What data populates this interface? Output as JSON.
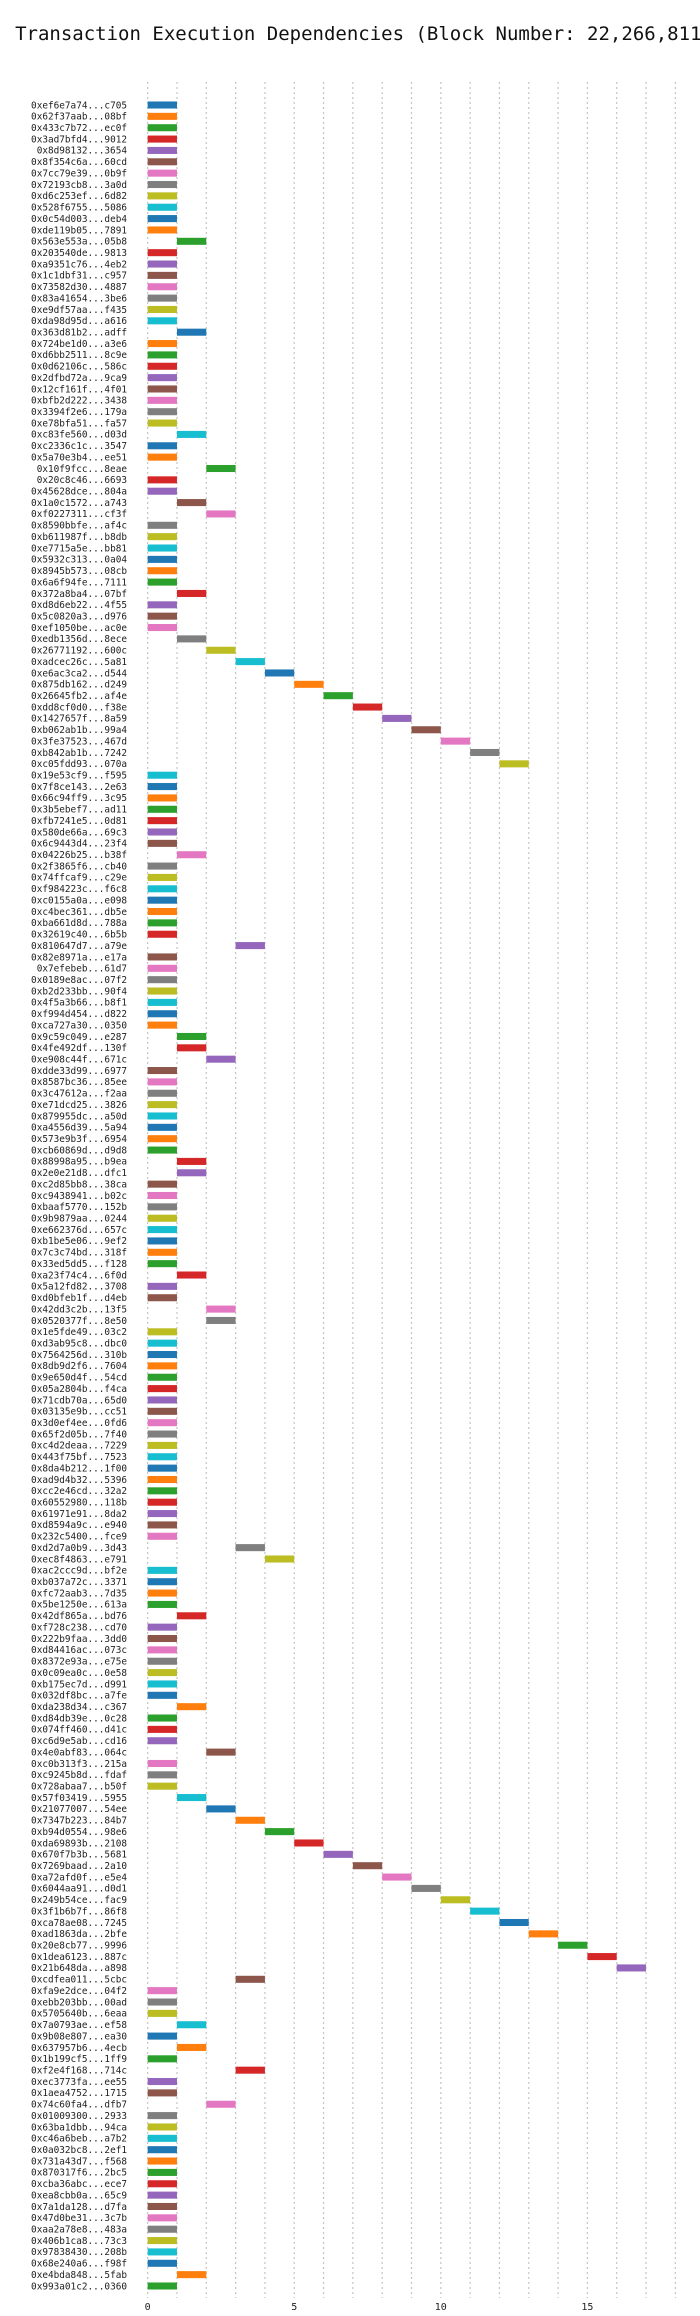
{
  "chart_data": {
    "type": "gantt",
    "title": "Transaction Execution Dependencies (Block Number: 22,266,811)",
    "xlabel": "",
    "ylabel": "",
    "xlim": [
      -0.5,
      18.5
    ],
    "xticks": [
      0,
      5,
      10,
      15
    ],
    "grid": true,
    "orientation": "horizontal",
    "colors": [
      "#1f77b4",
      "#ff7f0e",
      "#2ca02c",
      "#d62728",
      "#9467bd",
      "#8c564b",
      "#e377c2",
      "#7f7f7f",
      "#bcbd22",
      "#17becf"
    ],
    "transactions": [
      {
        "label": "0xef6e7a74...c705",
        "start": 0
      },
      {
        "label": "0x62f37aab...08bf",
        "start": 0
      },
      {
        "label": "0x433c7b72...ec0f",
        "start": 0
      },
      {
        "label": "0x3ad7bfd4...9012",
        "start": 0
      },
      {
        "label": "0x8d98132...3654",
        "start": 0
      },
      {
        "label": "0x8f354c6a...60cd",
        "start": 0
      },
      {
        "label": "0x7cc79e39...0b9f",
        "start": 0
      },
      {
        "label": "0x72193cb8...3a0d",
        "start": 0
      },
      {
        "label": "0xd6c253ef...6d82",
        "start": 0
      },
      {
        "label": "0x528f6755...5086",
        "start": 0
      },
      {
        "label": "0x0c54d003...deb4",
        "start": 0
      },
      {
        "label": "0xde119b05...7891",
        "start": 0
      },
      {
        "label": "0x563e553a...05b8",
        "start": 1
      },
      {
        "label": "0x203540de...9813",
        "start": 0
      },
      {
        "label": "0xa9351c76...4eb2",
        "start": 0
      },
      {
        "label": "0x1c1dbf31...c957",
        "start": 0
      },
      {
        "label": "0x73582d30...4887",
        "start": 0
      },
      {
        "label": "0x83a41654...3be6",
        "start": 0
      },
      {
        "label": "0xe9df57aa...f435",
        "start": 0
      },
      {
        "label": "0xda98d95d...a616",
        "start": 0
      },
      {
        "label": "0x363d81b2...adff",
        "start": 1
      },
      {
        "label": "0x724be1d0...a3e6",
        "start": 0
      },
      {
        "label": "0xd6bb2511...8c9e",
        "start": 0
      },
      {
        "label": "0x0d62106c...586c",
        "start": 0
      },
      {
        "label": "0x2dfbd72a...9ca9",
        "start": 0
      },
      {
        "label": "0x12cf161f...4f01",
        "start": 0
      },
      {
        "label": "0xbfb2d222...3438",
        "start": 0
      },
      {
        "label": "0x3394f2e6...179a",
        "start": 0
      },
      {
        "label": "0xe78bfa51...fa57",
        "start": 0
      },
      {
        "label": "0xc83fe560...d03d",
        "start": 1
      },
      {
        "label": "0xc2336c1c...3547",
        "start": 0
      },
      {
        "label": "0x5a70e3b4...ee51",
        "start": 0
      },
      {
        "label": "0x10f9fcc...8eae",
        "start": 2
      },
      {
        "label": "0x20c8c46...6693",
        "start": 0
      },
      {
        "label": "0x45628dce...804a",
        "start": 0
      },
      {
        "label": "0x1a0c1572...a743",
        "start": 1
      },
      {
        "label": "0xf0227311...cf3f",
        "start": 2
      },
      {
        "label": "0x8590bbfe...af4c",
        "start": 0
      },
      {
        "label": "0xb611987f...b8db",
        "start": 0
      },
      {
        "label": "0xe7715a5e...bb81",
        "start": 0
      },
      {
        "label": "0x5932c313...0a04",
        "start": 0
      },
      {
        "label": "0x8945b573...08cb",
        "start": 0
      },
      {
        "label": "0x6a6f94fe...7111",
        "start": 0
      },
      {
        "label": "0x372a8ba4...07bf",
        "start": 1
      },
      {
        "label": "0xd8d6eb22...4f55",
        "start": 0
      },
      {
        "label": "0x5c0820a3...d976",
        "start": 0
      },
      {
        "label": "0xef1050be...ac0e",
        "start": 0
      },
      {
        "label": "0xedb1356d...8ece",
        "start": 1
      },
      {
        "label": "0x26771192...600c",
        "start": 2
      },
      {
        "label": "0xadcec26c...5a81",
        "start": 3
      },
      {
        "label": "0xe6ac3ca2...d544",
        "start": 4
      },
      {
        "label": "0x875db162...d249",
        "start": 5
      },
      {
        "label": "0x26645fb2...af4e",
        "start": 6
      },
      {
        "label": "0xdd8cf0d0...f38e",
        "start": 7
      },
      {
        "label": "0x1427657f...8a59",
        "start": 8
      },
      {
        "label": "0xb062ab1b...99a4",
        "start": 9
      },
      {
        "label": "0x3fe37523...467d",
        "start": 10
      },
      {
        "label": "0xb842ab1b...7242",
        "start": 11
      },
      {
        "label": "0xc05fdd93...070a",
        "start": 12
      },
      {
        "label": "0x19e53cf9...f595",
        "start": 0
      },
      {
        "label": "0x7f8ce143...2e63",
        "start": 0
      },
      {
        "label": "0x66c94ff9...3c95",
        "start": 0
      },
      {
        "label": "0x3b5ebef7...ad11",
        "start": 0
      },
      {
        "label": "0xfb7241e5...0d81",
        "start": 0
      },
      {
        "label": "0x580de66a...69c3",
        "start": 0
      },
      {
        "label": "0x6c9443d4...23f4",
        "start": 0
      },
      {
        "label": "0x04226b25...b38f",
        "start": 1
      },
      {
        "label": "0x2f3865f6...cb40",
        "start": 0
      },
      {
        "label": "0x74ffcaf9...c29e",
        "start": 0
      },
      {
        "label": "0xf984223c...f6c8",
        "start": 0
      },
      {
        "label": "0xc0155a0a...e098",
        "start": 0
      },
      {
        "label": "0xc4bec361...db5e",
        "start": 0
      },
      {
        "label": "0xba661d8d...788a",
        "start": 0
      },
      {
        "label": "0x32619c40...6b5b",
        "start": 0
      },
      {
        "label": "0x810647d7...a79e",
        "start": 3
      },
      {
        "label": "0x82e8971a...e17a",
        "start": 0
      },
      {
        "label": "0x7efebeb...61d7",
        "start": 0
      },
      {
        "label": "0x0189e8ac...07f2",
        "start": 0
      },
      {
        "label": "0xb2d233bb...90f4",
        "start": 0
      },
      {
        "label": "0x4f5a3b66...b8f1",
        "start": 0
      },
      {
        "label": "0xf994d454...d822",
        "start": 0
      },
      {
        "label": "0xca727a30...0350",
        "start": 0
      },
      {
        "label": "0x9c59c049...e287",
        "start": 1
      },
      {
        "label": "0x4fe492df...130f",
        "start": 1
      },
      {
        "label": "0xe908c44f...671c",
        "start": 2
      },
      {
        "label": "0xdde33d99...6977",
        "start": 0
      },
      {
        "label": "0x8587bc36...85ee",
        "start": 0
      },
      {
        "label": "0x3c47612a...f2aa",
        "start": 0
      },
      {
        "label": "0xe71dcd25...3826",
        "start": 0
      },
      {
        "label": "0x879955dc...a50d",
        "start": 0
      },
      {
        "label": "0xa4556d39...5a94",
        "start": 0
      },
      {
        "label": "0x573e9b3f...6954",
        "start": 0
      },
      {
        "label": "0xcb60869d...d9d8",
        "start": 0
      },
      {
        "label": "0x88998a95...b9ea",
        "start": 1
      },
      {
        "label": "0x2e0e21d8...dfc1",
        "start": 1
      },
      {
        "label": "0xc2d85bb8...38ca",
        "start": 0
      },
      {
        "label": "0xc9438941...b02c",
        "start": 0
      },
      {
        "label": "0xbaaf5770...152b",
        "start": 0
      },
      {
        "label": "0x9b9879aa...0244",
        "start": 0
      },
      {
        "label": "0xe662376d...657c",
        "start": 0
      },
      {
        "label": "0xb1be5e06...9ef2",
        "start": 0
      },
      {
        "label": "0x7c3c74bd...318f",
        "start": 0
      },
      {
        "label": "0x33ed5dd5...f128",
        "start": 0
      },
      {
        "label": "0xa23f74c4...6f0d",
        "start": 1
      },
      {
        "label": "0x5a12fd82...3708",
        "start": 0
      },
      {
        "label": "0xd0bfeb1f...d4eb",
        "start": 0
      },
      {
        "label": "0x42dd3c2b...13f5",
        "start": 2
      },
      {
        "label": "0x0520377f...8e50",
        "start": 2
      },
      {
        "label": "0x1e5fde49...03c2",
        "start": 0
      },
      {
        "label": "0xd3ab95c8...dbc0",
        "start": 0
      },
      {
        "label": "0x7564256d...310b",
        "start": 0
      },
      {
        "label": "0x8db9d2f6...7604",
        "start": 0
      },
      {
        "label": "0x9e650d4f...54cd",
        "start": 0
      },
      {
        "label": "0x05a2804b...f4ca",
        "start": 0
      },
      {
        "label": "0x71cdb70a...65d0",
        "start": 0
      },
      {
        "label": "0x03135e9b...cc51",
        "start": 0
      },
      {
        "label": "0x3d0ef4ee...0fd6",
        "start": 0
      },
      {
        "label": "0x65f2d05b...7f40",
        "start": 0
      },
      {
        "label": "0xc4d2deaa...7229",
        "start": 0
      },
      {
        "label": "0x443f75bf...7523",
        "start": 0
      },
      {
        "label": "0x8da4b212...1f00",
        "start": 0
      },
      {
        "label": "0xad9d4b32...5396",
        "start": 0
      },
      {
        "label": "0xcc2e46cd...32a2",
        "start": 0
      },
      {
        "label": "0x60552980...118b",
        "start": 0
      },
      {
        "label": "0x61971e91...8da2",
        "start": 0
      },
      {
        "label": "0xd8594a9c...e940",
        "start": 0
      },
      {
        "label": "0x232c5400...fce9",
        "start": 0
      },
      {
        "label": "0xd2d7a0b9...3d43",
        "start": 3
      },
      {
        "label": "0xec8f4863...e791",
        "start": 4
      },
      {
        "label": "0xac2ccc9d...bf2e",
        "start": 0
      },
      {
        "label": "0xb037a72c...3371",
        "start": 0
      },
      {
        "label": "0xfc72aab3...7d35",
        "start": 0
      },
      {
        "label": "0x5be1250e...613a",
        "start": 0
      },
      {
        "label": "0x42df865a...bd76",
        "start": 1
      },
      {
        "label": "0xf728c238...cd70",
        "start": 0
      },
      {
        "label": "0x222b9faa...3dd0",
        "start": 0
      },
      {
        "label": "0xd84416ac...073c",
        "start": 0
      },
      {
        "label": "0x8372e93a...e75e",
        "start": 0
      },
      {
        "label": "0x0c09ea0c...0e58",
        "start": 0
      },
      {
        "label": "0xb175ec7d...d991",
        "start": 0
      },
      {
        "label": "0x032df8bc...a7fe",
        "start": 0
      },
      {
        "label": "0xda238d34...c367",
        "start": 1
      },
      {
        "label": "0xd84db39e...0c28",
        "start": 0
      },
      {
        "label": "0x074ff460...d41c",
        "start": 0
      },
      {
        "label": "0xc6d9e5ab...cd16",
        "start": 0
      },
      {
        "label": "0x4e0abf83...064c",
        "start": 2
      },
      {
        "label": "0xc0b313f3...215a",
        "start": 0
      },
      {
        "label": "0xc9245b8d...fdaf",
        "start": 0
      },
      {
        "label": "0x728abaa7...b50f",
        "start": 0
      },
      {
        "label": "0x57f03419...5955",
        "start": 1
      },
      {
        "label": "0x21077007...54ee",
        "start": 2
      },
      {
        "label": "0x7347b223...84b7",
        "start": 3
      },
      {
        "label": "0xb94d0554...98e6",
        "start": 4
      },
      {
        "label": "0xda69893b...2108",
        "start": 5
      },
      {
        "label": "0x670f7b3b...5681",
        "start": 6
      },
      {
        "label": "0x7269baad...2a10",
        "start": 7
      },
      {
        "label": "0xa72afd0f...e5e4",
        "start": 8
      },
      {
        "label": "0x6044aa91...d0d1",
        "start": 9
      },
      {
        "label": "0x249b54ce...fac9",
        "start": 10
      },
      {
        "label": "0x3f1b6b7f...86f8",
        "start": 11
      },
      {
        "label": "0xca78ae08...7245",
        "start": 12
      },
      {
        "label": "0xad1863da...2bfe",
        "start": 13
      },
      {
        "label": "0x20e8cb77...9996",
        "start": 14
      },
      {
        "label": "0x1dea6123...887c",
        "start": 15
      },
      {
        "label": "0x21b648da...a898",
        "start": 16
      },
      {
        "label": "0xcdfea011...5cbc",
        "start": 3
      },
      {
        "label": "0xfa9e2dce...04f2",
        "start": 0
      },
      {
        "label": "0xebb203bb...00ad",
        "start": 0
      },
      {
        "label": "0x5705640b...6eaa",
        "start": 0
      },
      {
        "label": "0x7a0793ae...ef58",
        "start": 1
      },
      {
        "label": "0x9b08e807...ea30",
        "start": 0
      },
      {
        "label": "0x637957b6...4ecb",
        "start": 1
      },
      {
        "label": "0x1b199cf5...1ff9",
        "start": 0
      },
      {
        "label": "0xf2e4f168...714c",
        "start": 3
      },
      {
        "label": "0xec3773fa...ee55",
        "start": 0
      },
      {
        "label": "0x1aea4752...1715",
        "start": 0
      },
      {
        "label": "0x74c60fa4...dfb7",
        "start": 2
      },
      {
        "label": "0x01009300...2933",
        "start": 0
      },
      {
        "label": "0x63ba1dbb...94ca",
        "start": 0
      },
      {
        "label": "0xc46a6beb...a7b2",
        "start": 0
      },
      {
        "label": "0x0a032bc8...2ef1",
        "start": 0
      },
      {
        "label": "0x731a43d7...f568",
        "start": 0
      },
      {
        "label": "0x870317f6...2bc5",
        "start": 0
      },
      {
        "label": "0xcba36abc...ece7",
        "start": 0
      },
      {
        "label": "0xea8cbb0a...65c9",
        "start": 0
      },
      {
        "label": "0x7a1da128...d7fa",
        "start": 0
      },
      {
        "label": "0x47d0be31...3c7b",
        "start": 0
      },
      {
        "label": "0xaa2a78e8...483a",
        "start": 0
      },
      {
        "label": "0x406b1ca8...73c3",
        "start": 0
      },
      {
        "label": "0x97838430...208b",
        "start": 0
      },
      {
        "label": "0x68e240a6...f98f",
        "start": 0
      },
      {
        "label": "0xe4bda848...5fab",
        "start": 1
      },
      {
        "label": "0x993a01c2...0360",
        "start": 0
      }
    ]
  }
}
